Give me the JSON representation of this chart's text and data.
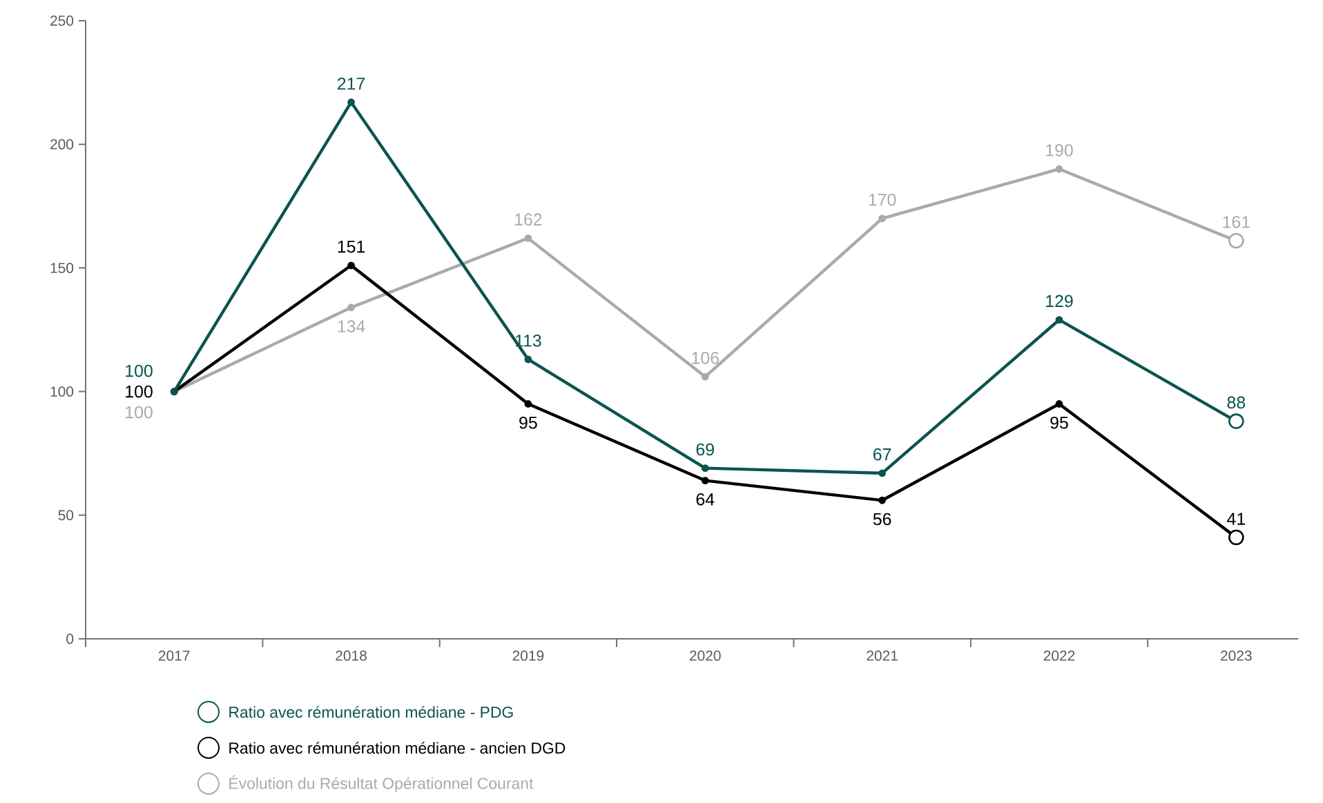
{
  "chart_data": {
    "type": "line",
    "categories": [
      "2017",
      "2018",
      "2019",
      "2020",
      "2021",
      "2022",
      "2023"
    ],
    "series": [
      {
        "name": "Ratio avec rémunération médiane - PDG",
        "color": "#0b5450",
        "values": [
          100,
          217,
          113,
          69,
          67,
          129,
          88
        ]
      },
      {
        "name": "Ratio avec rémunération médiane - ancien DGD",
        "color": "#000000",
        "values": [
          100,
          151,
          95,
          64,
          56,
          95,
          41
        ]
      },
      {
        "name": "Évolution du Résultat Opérationnel Courant",
        "color": "#aaaaaa",
        "values": [
          100,
          134,
          162,
          106,
          170,
          190,
          161
        ]
      }
    ],
    "ylim": [
      0,
      250
    ],
    "yticks": [
      0,
      50,
      100,
      150,
      200,
      250
    ],
    "data_labels": true,
    "legend": "bottom",
    "marker": "circle",
    "line_style": "solid",
    "grid": false
  }
}
